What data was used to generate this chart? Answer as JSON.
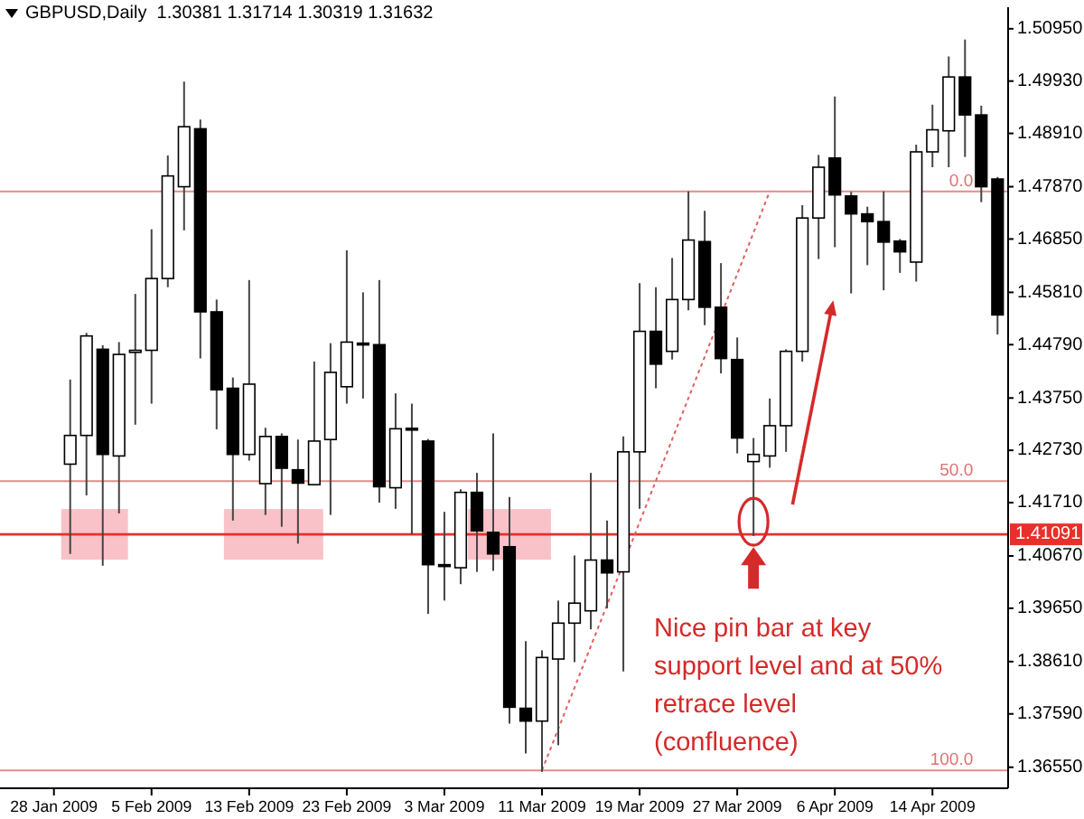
{
  "chart_data": {
    "type": "candlestick",
    "title": "GBPUSD,Daily  1.30381 1.31714 1.30319 1.31632",
    "categories": [
      "28 Jan 2009",
      null,
      null,
      null,
      null,
      null,
      "5 Feb 2009",
      null,
      null,
      null,
      null,
      null,
      "13 Feb 2009",
      null,
      null,
      null,
      null,
      null,
      "23 Feb 2009",
      null,
      null,
      null,
      null,
      null,
      "3 Mar 2009",
      null,
      null,
      null,
      null,
      null,
      "11 Mar 2009",
      null,
      null,
      null,
      null,
      null,
      "19 Mar 2009",
      null,
      null,
      null,
      null,
      null,
      "27 Mar 2009",
      null,
      null,
      null,
      null,
      null,
      "6 Apr 2009",
      null,
      null,
      null,
      null,
      null,
      "14 Apr 2009",
      null,
      null,
      null,
      null
    ],
    "ohlc": [
      null,
      [
        1.4246,
        1.4411,
        1.4071,
        1.4302
      ],
      [
        1.4302,
        1.4502,
        1.4185,
        1.4496
      ],
      [
        1.447,
        1.4478,
        1.4048,
        1.4265
      ],
      [
        1.4262,
        1.4484,
        1.415,
        1.446
      ],
      [
        1.4464,
        1.4578,
        1.4323,
        1.4468
      ],
      [
        1.4468,
        1.4704,
        1.4364,
        1.4608
      ],
      [
        1.4608,
        1.4848,
        1.4591,
        1.4808
      ],
      [
        1.4787,
        1.4992,
        1.4702,
        1.4904
      ],
      [
        1.49,
        1.4918,
        1.4452,
        1.4543
      ],
      [
        1.4543,
        1.4567,
        1.4314,
        1.4391
      ],
      [
        1.4394,
        1.4415,
        1.4136,
        1.4265
      ],
      [
        1.4265,
        1.4605,
        1.4253,
        1.4402
      ],
      [
        1.4208,
        1.4317,
        1.4147,
        1.43
      ],
      [
        1.43,
        1.4306,
        1.4124,
        1.4238
      ],
      [
        1.4235,
        1.4294,
        1.4091,
        1.4209
      ],
      [
        1.4206,
        1.4446,
        1.4206,
        1.4291
      ],
      [
        1.4294,
        1.4482,
        1.4147,
        1.4425
      ],
      [
        1.4397,
        1.4663,
        1.4364,
        1.4484
      ],
      [
        1.4482,
        1.4581,
        1.4374,
        1.4479
      ],
      [
        1.4479,
        1.4605,
        1.4171,
        1.4202
      ],
      [
        1.42,
        1.4384,
        1.4159,
        1.4315
      ],
      [
        1.4316,
        1.4364,
        1.4109,
        1.4314
      ],
      [
        1.4291,
        1.4295,
        1.3954,
        1.405
      ],
      [
        1.405,
        1.4153,
        1.398,
        1.4048
      ],
      [
        1.4044,
        1.4197,
        1.4012,
        1.4191
      ],
      [
        1.4191,
        1.4229,
        1.4036,
        1.4116
      ],
      [
        1.4113,
        1.4306,
        1.4038,
        1.4071
      ],
      [
        1.4085,
        1.4182,
        1.374,
        1.3772
      ],
      [
        1.377,
        1.3901,
        1.3682,
        1.3745
      ],
      [
        1.3745,
        1.3883,
        1.3646,
        1.3869
      ],
      [
        1.3866,
        1.398,
        1.3698,
        1.3936
      ],
      [
        1.3936,
        1.4068,
        1.386,
        1.3975
      ],
      [
        1.396,
        1.4229,
        1.3924,
        1.4059
      ],
      [
        1.4059,
        1.4136,
        1.3965,
        1.4034
      ],
      [
        1.4036,
        1.43,
        1.3842,
        1.427
      ],
      [
        1.427,
        1.4599,
        1.4159,
        1.4505
      ],
      [
        1.4505,
        1.4591,
        1.4394,
        1.4441
      ],
      [
        1.4466,
        1.4648,
        1.445,
        1.4567
      ],
      [
        1.4567,
        1.4778,
        1.4546,
        1.4683
      ],
      [
        1.468,
        1.474,
        1.4517,
        1.4552
      ],
      [
        1.4552,
        1.4638,
        1.4423,
        1.4452
      ],
      [
        1.445,
        1.4493,
        1.4267,
        1.4297
      ],
      [
        1.4251,
        1.4297,
        1.4106,
        1.4265
      ],
      [
        1.4262,
        1.4374,
        1.4239,
        1.4321
      ],
      [
        1.4321,
        1.447,
        1.427,
        1.4466
      ],
      [
        1.4466,
        1.4751,
        1.4446,
        1.4726
      ],
      [
        1.4726,
        1.4849,
        1.4646,
        1.4825
      ],
      [
        1.4843,
        1.4963,
        1.4669,
        1.4771
      ],
      [
        1.4769,
        1.4777,
        1.4579,
        1.4734
      ],
      [
        1.4734,
        1.4748,
        1.4634,
        1.4719
      ],
      [
        1.4719,
        1.4778,
        1.4585,
        1.4679
      ],
      [
        1.4681,
        1.4685,
        1.4619,
        1.466
      ],
      [
        1.464,
        1.4869,
        1.4602,
        1.4855
      ],
      [
        1.4855,
        1.4947,
        1.4825,
        1.4898
      ],
      [
        1.4896,
        1.5041,
        1.4825,
        1.5001
      ],
      [
        1.5001,
        1.5074,
        1.4845,
        1.4927
      ],
      [
        1.4927,
        1.4945,
        1.4757,
        1.4787
      ],
      [
        1.4802,
        1.4806,
        1.4499,
        1.4537
      ]
    ],
    "series": [
      {
        "type": "line",
        "color": "#e06060",
        "line_style": "dotted",
        "values": [
          null,
          null,
          null,
          null,
          null,
          null,
          null,
          null,
          null,
          null,
          null,
          null,
          null,
          null,
          null,
          null,
          null,
          null,
          null,
          null,
          null,
          null,
          null,
          null,
          null,
          null,
          null,
          null,
          null,
          null,
          1.3649,
          null,
          null,
          null,
          null,
          null,
          null,
          null,
          null,
          null,
          null,
          null,
          null,
          null,
          1.4778,
          null,
          null,
          null,
          null,
          null,
          null,
          null,
          null,
          null,
          null,
          null,
          null,
          null,
          null
        ]
      }
    ],
    "ylim": [
      1.3614,
      1.5137
    ],
    "yticks": [
      {
        "value": 1.5095,
        "label": "1.50950"
      },
      {
        "value": 1.4993,
        "label": "1.49930"
      },
      {
        "value": 1.4891,
        "label": "1.48910"
      },
      {
        "value": 1.4787,
        "label": "1.47870"
      },
      {
        "value": 1.4685,
        "label": "1.46850"
      },
      {
        "value": 1.4581,
        "label": "1.45810"
      },
      {
        "value": 1.4479,
        "label": "1.44790"
      },
      {
        "value": 1.4375,
        "label": "1.43750"
      },
      {
        "value": 1.4273,
        "label": "1.42730"
      },
      {
        "value": 1.4171,
        "label": "1.41710"
      },
      {
        "value": 1.4067,
        "label": "1.40670"
      },
      {
        "value": 1.3965,
        "label": "1.39650"
      },
      {
        "value": 1.3861,
        "label": "1.38610"
      },
      {
        "value": 1.3759,
        "label": "1.37590"
      },
      {
        "value": 1.3655,
        "label": "1.36550"
      }
    ],
    "ref_lines": [
      {
        "axis": "y",
        "value": 1.41091,
        "label": "1.41091",
        "color": "#e8302a"
      },
      {
        "axis": "y",
        "value": 1.4778,
        "color": "#e88a8a"
      },
      {
        "axis": "y",
        "value": 1.4213,
        "color": "#e88a8a"
      },
      {
        "axis": "y",
        "value": 1.3649,
        "color": "#e88a8a"
      }
    ],
    "annotations": [
      "Nice pin bar at key support level and at 50% retrace level (confluence)",
      {
        "text": "0.0",
        "y": 1.4778
      },
      {
        "text": "50.0",
        "y": 1.4213
      },
      {
        "text": "100.0",
        "y": 1.3649
      }
    ]
  }
}
